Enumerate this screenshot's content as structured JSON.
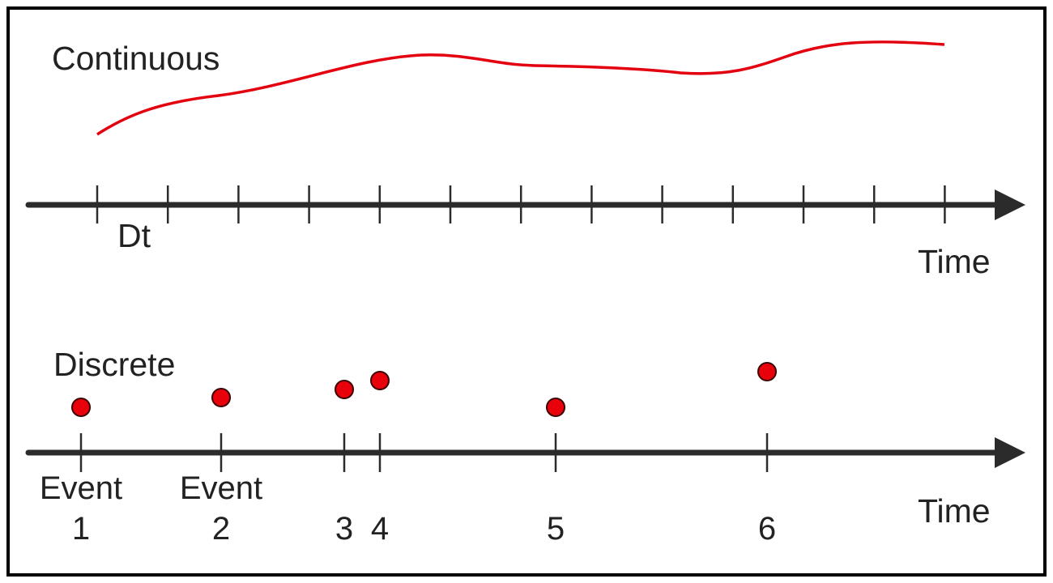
{
  "colors": {
    "frame": "#000000",
    "axis": "#2b2b2b",
    "signal": "#e3000f",
    "event_fill": "#e8000b",
    "event_stroke": "#3a0000",
    "text": "#222222"
  },
  "continuous": {
    "title": "Continuous",
    "axis_label": "Time",
    "step_label": "Dt",
    "tick_count": 13
  },
  "discrete": {
    "title": "Discrete",
    "axis_label": "Time",
    "events": [
      {
        "number": "1",
        "caption": "Event",
        "level": "low"
      },
      {
        "number": "2",
        "caption": "Event",
        "level": "mid"
      },
      {
        "number": "3",
        "caption": "",
        "level": "high"
      },
      {
        "number": "4",
        "caption": "",
        "level": "top"
      },
      {
        "number": "5",
        "caption": "",
        "level": "low"
      },
      {
        "number": "6",
        "caption": "",
        "level": "peak"
      }
    ]
  }
}
